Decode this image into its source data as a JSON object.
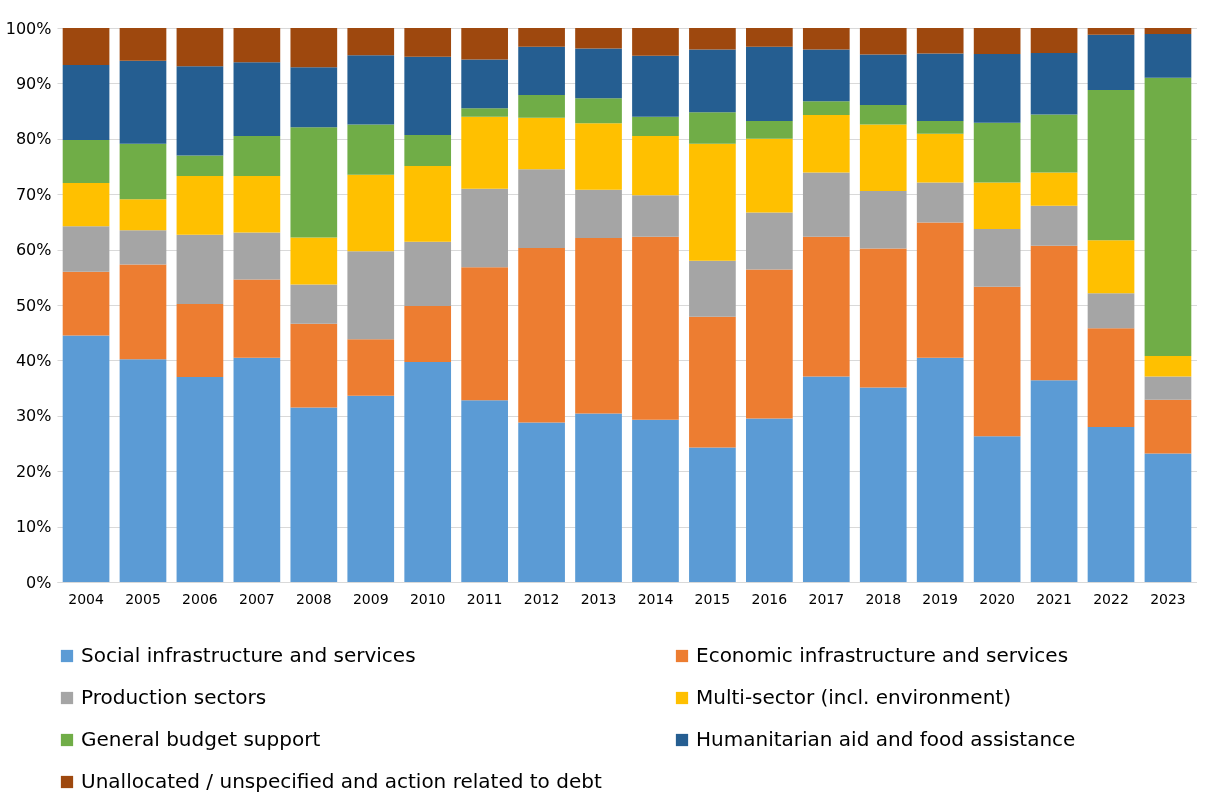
{
  "chart_data": {
    "type": "bar",
    "stacked": true,
    "categories": [
      "2004",
      "2005",
      "2006",
      "2007",
      "2008",
      "2009",
      "2010",
      "2011",
      "2012",
      "2013",
      "2014",
      "2015",
      "2016",
      "2017",
      "2018",
      "2019",
      "2020",
      "2021",
      "2022",
      "2023"
    ],
    "series": [
      {
        "name": "Social infrastructure and services",
        "color": "#5b9bd5",
        "values": [
          44.5,
          40.2,
          37.0,
          40.5,
          31.5,
          33.6,
          39.7,
          32.8,
          28.8,
          30.4,
          29.3,
          24.3,
          29.5,
          37.1,
          35.1,
          40.5,
          26.3,
          36.4,
          28.0,
          23.2
        ]
      },
      {
        "name": "Economic infrastructure and services",
        "color": "#ed7d31",
        "values": [
          11.5,
          17.1,
          13.2,
          14.1,
          15.1,
          10.2,
          10.1,
          24.0,
          31.5,
          31.7,
          33.0,
          23.6,
          26.9,
          25.2,
          25.1,
          24.4,
          27.0,
          24.3,
          17.8,
          9.7
        ]
      },
      {
        "name": "Production sectors",
        "color": "#a5a5a5",
        "values": [
          8.2,
          6.2,
          12.5,
          8.5,
          7.1,
          15.9,
          11.6,
          14.2,
          14.2,
          8.7,
          7.5,
          10.1,
          10.3,
          11.6,
          10.4,
          7.2,
          10.4,
          7.2,
          6.3,
          4.2
        ]
      },
      {
        "name": "Multi-sector (incl. environment)",
        "color": "#ffc000",
        "values": [
          7.8,
          5.6,
          10.6,
          10.2,
          8.5,
          13.8,
          13.7,
          13.0,
          9.3,
          12.0,
          10.7,
          21.1,
          13.3,
          10.4,
          12.0,
          8.8,
          8.4,
          6.0,
          9.6,
          3.7
        ]
      },
      {
        "name": "General budget support",
        "color": "#70ad47",
        "values": [
          7.8,
          10.0,
          3.7,
          7.2,
          19.9,
          9.1,
          5.6,
          1.5,
          4.1,
          4.5,
          3.5,
          5.7,
          3.2,
          2.5,
          3.5,
          2.3,
          10.8,
          10.5,
          27.1,
          50.2
        ]
      },
      {
        "name": "Humanitarian aid and food assistance",
        "color": "#255e91",
        "values": [
          13.5,
          15.0,
          16.1,
          13.3,
          10.8,
          12.5,
          14.1,
          8.8,
          8.7,
          9.0,
          11.0,
          11.3,
          13.4,
          9.3,
          9.1,
          12.2,
          12.4,
          11.1,
          10.0,
          7.9
        ]
      },
      {
        "name": "Unallocated / unspecified and action related to debt",
        "color": "#9e480e",
        "values": [
          6.7,
          5.9,
          6.9,
          6.2,
          7.1,
          4.9,
          5.2,
          5.7,
          3.4,
          3.7,
          5.0,
          3.9,
          3.4,
          3.9,
          4.8,
          4.6,
          4.7,
          4.5,
          1.2,
          1.1
        ]
      }
    ],
    "ylim": [
      0,
      100
    ],
    "yticks": [
      {
        "value": 0,
        "label": "0%"
      },
      {
        "value": 10,
        "label": "10%"
      },
      {
        "value": 20,
        "label": "20%"
      },
      {
        "value": 30,
        "label": "30%"
      },
      {
        "value": 40,
        "label": "40%"
      },
      {
        "value": 50,
        "label": "50%"
      },
      {
        "value": 60,
        "label": "60%"
      },
      {
        "value": 70,
        "label": "70%"
      },
      {
        "value": 80,
        "label": "80%"
      },
      {
        "value": 90,
        "label": "90%"
      },
      {
        "value": 100,
        "label": "100%"
      }
    ],
    "grid": "y",
    "legend": "bottom"
  }
}
